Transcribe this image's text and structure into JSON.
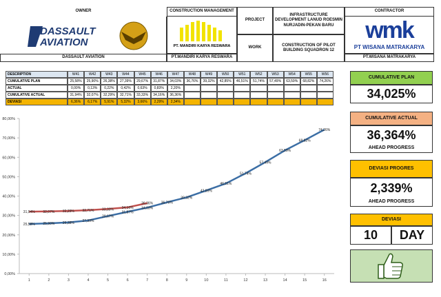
{
  "header": {
    "owner_label": "OWNER",
    "cm_label": "CONSTRUCTION MANAGEMENT",
    "project_label": "PROJECT",
    "project": "INFRASTRUCTURE DEVELOPMENT LANUD ROESMIN NURJADIN-PEKAN BARU",
    "work_label": "WORK",
    "work": "CONSTRUCTION OF PILOT BUILDING SQUADRON 12",
    "contractor_label": "CONTRACTOR",
    "owner_logo": [
      "DASSAULT",
      "AVIATION"
    ],
    "cm_logo_caption": "PT. MANDIRI KARYA RESWARA",
    "contractor_logo": "wmk",
    "contractor_logo_caption": "PT WISANA MATRAKARYA",
    "owner": "DASSAULT AVIATION",
    "cm": "PT.MANDIRI KARYA RESWARA",
    "contractor": "PT.WISANA MATRAKARYA"
  },
  "table": {
    "columns": [
      "DESCRIPTION",
      "W41",
      "W42",
      "W43",
      "W44",
      "W45",
      "W46",
      "W47",
      "W48",
      "W49",
      "W50",
      "W51",
      "W52",
      "W53",
      "W54",
      "W55",
      "W56"
    ],
    "rows": [
      [
        "CUMULATIVE PLAN",
        "25,58%",
        "25,90%",
        "26,38%",
        "27,39%",
        "29,67%",
        "31,87%",
        "34,03%",
        "36,76%",
        "39,32%",
        "42,85%",
        "46,51%",
        "51,74%",
        "57,49%",
        "63,59%",
        "68,82%",
        "74,26%"
      ],
      [
        "ACTUAL",
        "0,00%",
        "0,13%",
        "0,22%",
        "0,42%",
        "0,63%",
        "0,83%",
        "2,20%"
      ],
      [
        "CUMULATIVE ACTUAL",
        "31,94%",
        "32,07%",
        "32,29%",
        "32,71%",
        "33,33%",
        "34,16%",
        "36,36%"
      ],
      [
        "DEVIASI",
        "6,36%",
        "6,17%",
        "5,91%",
        "5,32%",
        "3,66%",
        "2,29%",
        "2,34%"
      ]
    ]
  },
  "panels": {
    "plan": {
      "title": "CUMULATIVE PLAN",
      "value": "34,025%"
    },
    "actual": {
      "title": "CUMULATIVE ACTUAL",
      "value": "36,364%",
      "note": "AHEAD PROGRESS"
    },
    "deviation": {
      "title": "DEVIASI PROGRES",
      "value": "2,339%",
      "note": "AHEAD PROGRESS"
    },
    "days": {
      "title": "DEVIASI",
      "value": "10",
      "unit": "DAY"
    }
  },
  "chart_data": {
    "type": "line",
    "x": [
      1,
      2,
      3,
      4,
      5,
      6,
      7,
      8,
      9,
      10,
      11,
      12,
      13,
      14,
      15,
      16
    ],
    "xlim": [
      0.5,
      16.5
    ],
    "xticks": [
      1,
      2,
      3,
      4,
      5,
      6,
      7,
      8,
      9,
      10,
      11,
      12,
      13,
      14,
      15,
      16
    ],
    "ylim": [
      0,
      80
    ],
    "yticks": [
      {
        "value": 0,
        "label": "0,00%"
      },
      {
        "value": 10,
        "label": "10,00%"
      },
      {
        "value": 20,
        "label": "20,00%"
      },
      {
        "value": 30,
        "label": "30,00%"
      },
      {
        "value": 40,
        "label": "40,00%"
      },
      {
        "value": 50,
        "label": "50,00%"
      },
      {
        "value": 60,
        "label": "60,00%"
      },
      {
        "value": 70,
        "label": "70,00%"
      },
      {
        "value": 80,
        "label": "80,00%"
      }
    ],
    "grid": false,
    "series": [
      {
        "name": "CUMULATIVE PLAN",
        "color": "#3b6ea5",
        "values": [
          25.58,
          25.9,
          26.38,
          27.39,
          29.67,
          31.87,
          34.03,
          36.76,
          39.32,
          42.85,
          46.51,
          51.74,
          57.49,
          63.59,
          68.82,
          74.26
        ],
        "value_labels": [
          "25,58%",
          "25,90%",
          "26,38%",
          "27,39%",
          "29,67%",
          "31,87%",
          "34,03%",
          "36,76%",
          "39,32%",
          "42,85%",
          "46,51%",
          "51,74%",
          "57,49%",
          "63,59%",
          "68,82%",
          "74,26%"
        ]
      },
      {
        "name": "CUMULATIVE ACTUAL",
        "color": "#c0504d",
        "values": [
          31.94,
          32.07,
          32.29,
          32.71,
          33.33,
          34.16,
          36.36,
          null,
          null,
          null,
          null,
          null,
          null,
          null,
          null,
          null
        ],
        "value_labels": [
          "31,94%",
          "32,07%",
          "32,29%",
          "32,71%",
          "33,33%",
          "34,16%",
          "36,36%",
          null,
          null,
          null,
          null,
          null,
          null,
          null,
          null,
          null
        ]
      }
    ]
  }
}
